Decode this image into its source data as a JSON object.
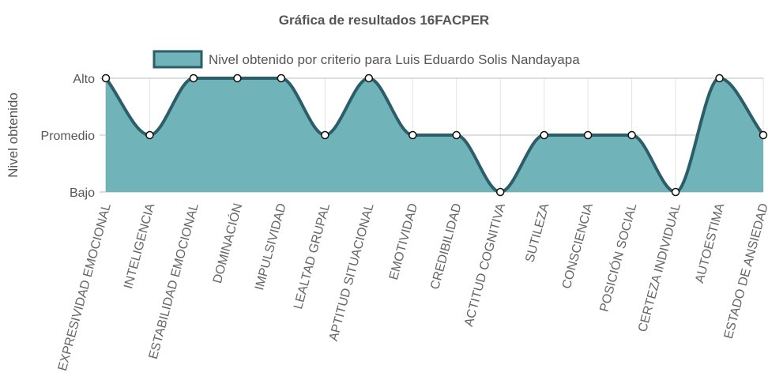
{
  "chart_data": {
    "type": "area",
    "title": "Gráfica de resultados 16FACPER",
    "ylabel": "Nivel obtenido",
    "xlabel": "",
    "y_levels": [
      "Bajo",
      "Promedio",
      "Alto"
    ],
    "ylim": [
      0,
      2
    ],
    "categories": [
      "EXPRESIVIDAD EMOCIONAL",
      "INTELIGENCIA",
      "ESTABILIDAD EMOCIONAL",
      "DOMINACIÓN",
      "IMPULSIVIDAD",
      "LEALTAD GRUPAL",
      "APTITUD SITUACIONAL",
      "EMOTIVIDAD",
      "CREDIBILIDAD",
      "ACTITUD COGNITIVA",
      "SUTILEZA",
      "CONSCIENCIA",
      "POSICIÓN SOCIAL",
      "CERTEZA INDIVIDUAL",
      "AUTOESTIMA",
      "ESTADO DE ANSIEDAD"
    ],
    "series": [
      {
        "name": "Nivel obtenido por criterio para Luis Eduardo Solis Nandayapa",
        "values": [
          2,
          1,
          2,
          2,
          2,
          1,
          2,
          1,
          1,
          0,
          1,
          1,
          1,
          0,
          2,
          1
        ],
        "fill_color": "#70b3b8",
        "line_color": "#2b5e68"
      }
    ],
    "grid": true,
    "legend": "top"
  }
}
